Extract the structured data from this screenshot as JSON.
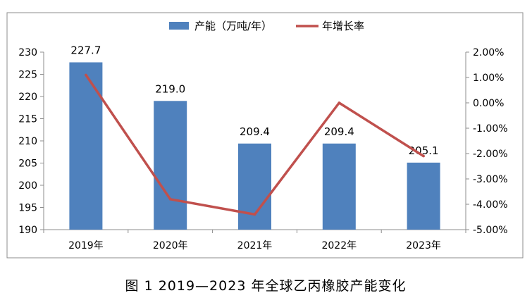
{
  "chart_data": {
    "type": "bar",
    "categories": [
      "2019年",
      "2020年",
      "2021年",
      "2022年",
      "2023年"
    ],
    "series": [
      {
        "name": "产能（万吨/年）",
        "type": "bar",
        "axis": "left",
        "values": [
          227.7,
          219.0,
          209.4,
          209.4,
          205.1
        ],
        "labels": [
          "227.7",
          "219.0",
          "209.4",
          "209.4",
          "205.1"
        ],
        "color": "#4f81bd"
      },
      {
        "name": "年增长率",
        "type": "line",
        "axis": "right",
        "values": [
          1.1,
          -3.8,
          -4.4,
          0.0,
          -2.1
        ],
        "color": "#c0504d"
      }
    ],
    "ylim": [
      190,
      230
    ],
    "yticks": [
      "190",
      "195",
      "200",
      "205",
      "210",
      "215",
      "220",
      "225",
      "230"
    ],
    "y2lim": [
      -5,
      2
    ],
    "y2ticks": [
      "2.00%",
      "1.00%",
      "0.00%",
      "-1.00%",
      "-2.00%",
      "-3.00%",
      "-4.00%",
      "-5.00%"
    ],
    "legend_position": "top-center",
    "grid": false
  },
  "caption": "图 1  2019—2023 年全球乙丙橡胶产能变化"
}
